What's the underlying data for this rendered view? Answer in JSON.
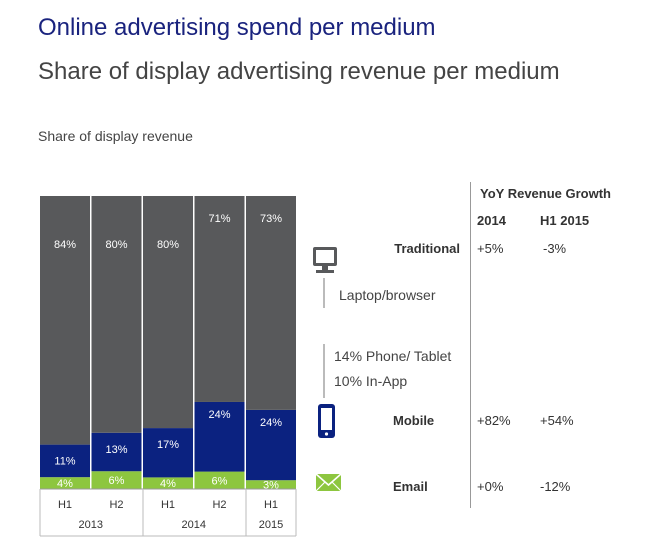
{
  "title": "Online advertising spend per medium",
  "subtitle": "Share of display advertising revenue per medium",
  "chart_label": "Share of display revenue",
  "colors": {
    "traditional": "#58595b",
    "mobile": "#0b2280",
    "email": "#8dc63f"
  },
  "chart_data": {
    "type": "bar",
    "stacked": true,
    "categories": [
      "H1",
      "H2",
      "H1",
      "H2",
      "H1"
    ],
    "years": [
      {
        "label": "2013",
        "span": 2
      },
      {
        "label": "2014",
        "span": 2
      },
      {
        "label": "2015",
        "span": 1
      }
    ],
    "series": [
      {
        "key": "email",
        "values": [
          4,
          6,
          4,
          6,
          3
        ],
        "labels": [
          "4%",
          "6%",
          "4%",
          "6%",
          "3%"
        ]
      },
      {
        "key": "mobile",
        "values": [
          11,
          13,
          17,
          24,
          24
        ],
        "labels": [
          "11%",
          "13%",
          "17%",
          "24%",
          "24%"
        ]
      },
      {
        "key": "traditional",
        "values": [
          84,
          80,
          80,
          71,
          73
        ],
        "labels": [
          "84%",
          "80%",
          "80%",
          "71%",
          "73%"
        ]
      }
    ],
    "ylim": [
      0,
      100
    ]
  },
  "legend": {
    "laptop_text": "Laptop/browser",
    "mobile_text_1": "14% Phone/ Tablet",
    "mobile_text_2": "10% In-App",
    "laptop_icon": "monitor-icon",
    "mobile_icon": "smartphone-icon",
    "email_icon": "envelope-icon"
  },
  "yoy": {
    "header": "YoY Revenue Growth",
    "col1": "2014",
    "col2": "H1 2015",
    "rows": [
      {
        "label": "Traditional",
        "v2014": "+5%",
        "vh12015": "-3%"
      },
      {
        "label": "Mobile",
        "v2014": "+82%",
        "vh12015": "+54%"
      },
      {
        "label": "Email",
        "v2014": "+0%",
        "vh12015": "-12%"
      }
    ]
  }
}
